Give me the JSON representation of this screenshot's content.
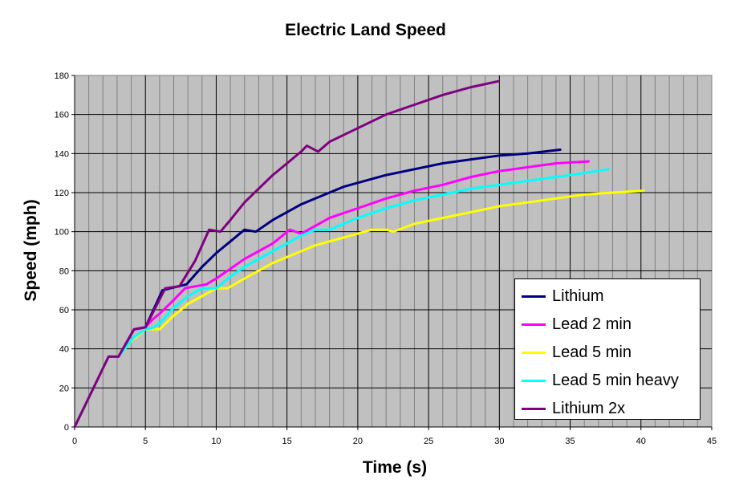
{
  "chart_data": {
    "type": "line",
    "title": "Electric Land Speed",
    "xlabel": "Time (s)",
    "ylabel": "Speed (mph)",
    "xlim": [
      0,
      45
    ],
    "ylim": [
      0,
      180
    ],
    "x_ticks": [
      "0",
      "5",
      "10",
      "15",
      "20",
      "25",
      "30",
      "35",
      "40",
      "45"
    ],
    "y_ticks": [
      "0",
      "20",
      "40",
      "60",
      "80",
      "100",
      "120",
      "140",
      "160",
      "180"
    ],
    "grid": true,
    "legend_position": "bottom-right",
    "background": "#c0c0c0",
    "series": [
      {
        "name": "Lithium",
        "color": "#000080",
        "points": [
          [
            0,
            0
          ],
          [
            2.4,
            36
          ],
          [
            3.1,
            36
          ],
          [
            4.2,
            50
          ],
          [
            5,
            51
          ],
          [
            6.2,
            70
          ],
          [
            7.3,
            72
          ],
          [
            7.9,
            73
          ],
          [
            9,
            82
          ],
          [
            10,
            89
          ],
          [
            11,
            95
          ],
          [
            12,
            101
          ],
          [
            12.8,
            100
          ],
          [
            14,
            106
          ],
          [
            15,
            110
          ],
          [
            16,
            114
          ],
          [
            17,
            117
          ],
          [
            18,
            120
          ],
          [
            19,
            123
          ],
          [
            20,
            125
          ],
          [
            22,
            129
          ],
          [
            24,
            132
          ],
          [
            26,
            135
          ],
          [
            28,
            137
          ],
          [
            30,
            139
          ],
          [
            32,
            140
          ],
          [
            34.3,
            142
          ]
        ]
      },
      {
        "name": "Lead 2 min",
        "color": "#ff00ff",
        "points": [
          [
            0,
            0
          ],
          [
            2.4,
            36
          ],
          [
            3.1,
            36
          ],
          [
            4.2,
            50
          ],
          [
            5,
            51
          ],
          [
            5.5,
            55
          ],
          [
            6,
            58
          ],
          [
            7,
            65
          ],
          [
            7.8,
            71
          ],
          [
            8.5,
            72
          ],
          [
            9.3,
            73
          ],
          [
            10,
            76
          ],
          [
            11,
            81
          ],
          [
            12,
            86
          ],
          [
            13,
            90
          ],
          [
            14,
            94
          ],
          [
            15.2,
            101
          ],
          [
            16,
            99
          ],
          [
            17,
            103
          ],
          [
            18,
            107
          ],
          [
            20,
            112
          ],
          [
            22,
            117
          ],
          [
            24,
            121
          ],
          [
            26,
            124
          ],
          [
            28,
            128
          ],
          [
            30,
            131
          ],
          [
            32,
            133
          ],
          [
            34,
            135
          ],
          [
            36.3,
            136
          ]
        ]
      },
      {
        "name": "Lead 5 min",
        "color": "#ffff00",
        "points": [
          [
            0,
            0
          ],
          [
            2.4,
            36
          ],
          [
            3.1,
            36
          ],
          [
            4,
            44
          ],
          [
            5,
            50
          ],
          [
            5.6,
            50
          ],
          [
            6,
            50
          ],
          [
            7,
            57
          ],
          [
            8,
            63
          ],
          [
            9,
            67
          ],
          [
            10,
            71
          ],
          [
            10.8,
            71
          ],
          [
            12,
            76
          ],
          [
            13,
            80
          ],
          [
            14,
            84
          ],
          [
            15,
            87
          ],
          [
            16,
            90
          ],
          [
            17,
            93
          ],
          [
            18,
            95
          ],
          [
            19,
            97
          ],
          [
            20,
            99
          ],
          [
            21,
            101
          ],
          [
            22,
            101
          ],
          [
            22.5,
            100
          ],
          [
            24,
            104
          ],
          [
            26,
            107
          ],
          [
            28,
            110
          ],
          [
            30,
            113
          ],
          [
            32,
            115
          ],
          [
            34,
            117
          ],
          [
            36,
            119
          ],
          [
            38,
            120
          ],
          [
            40.2,
            121
          ]
        ]
      },
      {
        "name": "Lead 5 min heavy",
        "color": "#00ffff",
        "points": [
          [
            0,
            0
          ],
          [
            2.4,
            36
          ],
          [
            3.1,
            36
          ],
          [
            4.2,
            46
          ],
          [
            5,
            50
          ],
          [
            5.6,
            51
          ],
          [
            6,
            53
          ],
          [
            7,
            61
          ],
          [
            8,
            67
          ],
          [
            9,
            71
          ],
          [
            10,
            71
          ],
          [
            11,
            77
          ],
          [
            12,
            82
          ],
          [
            13,
            86
          ],
          [
            14,
            90
          ],
          [
            15,
            94
          ],
          [
            16,
            98
          ],
          [
            17,
            101
          ],
          [
            18,
            101
          ],
          [
            19,
            104
          ],
          [
            20,
            107
          ],
          [
            22,
            112
          ],
          [
            24,
            116
          ],
          [
            26,
            119
          ],
          [
            28,
            122
          ],
          [
            30,
            124
          ],
          [
            32,
            126
          ],
          [
            34,
            128
          ],
          [
            36,
            130
          ],
          [
            37.7,
            132
          ]
        ]
      },
      {
        "name": "Lithium 2x",
        "color": "#800080",
        "points": [
          [
            0,
            0
          ],
          [
            2.4,
            36
          ],
          [
            3.1,
            36
          ],
          [
            4.2,
            50
          ],
          [
            5,
            51
          ],
          [
            6.4,
            71
          ],
          [
            7.4,
            72
          ],
          [
            8.5,
            85
          ],
          [
            9.5,
            101
          ],
          [
            10.3,
            100
          ],
          [
            11,
            106
          ],
          [
            12,
            115
          ],
          [
            13,
            122
          ],
          [
            14,
            129
          ],
          [
            15,
            135
          ],
          [
            16,
            141
          ],
          [
            16.4,
            144
          ],
          [
            17.2,
            141
          ],
          [
            18,
            146
          ],
          [
            20,
            153
          ],
          [
            22,
            160
          ],
          [
            24,
            165
          ],
          [
            26,
            170
          ],
          [
            28,
            174
          ],
          [
            29.9,
            177
          ]
        ]
      }
    ]
  }
}
